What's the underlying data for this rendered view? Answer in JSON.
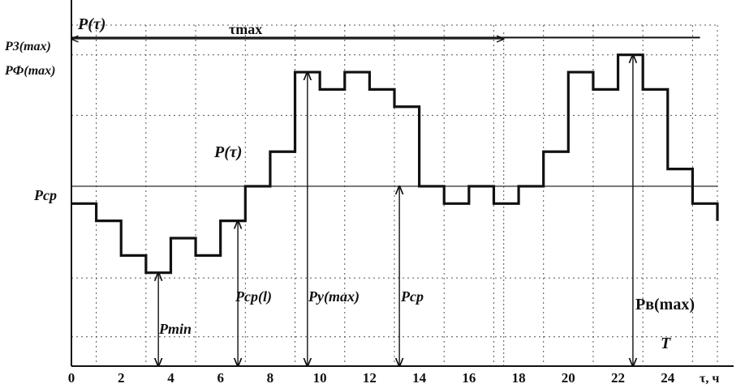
{
  "chart_data": {
    "type": "line",
    "x_axis": {
      "ticks": [
        "0",
        "2",
        "4",
        "6",
        "8",
        "10",
        "12",
        "14",
        "16",
        "18",
        "20",
        "22",
        "24"
      ],
      "label": "τ, ч",
      "range": [
        0,
        26
      ]
    },
    "y_axis": {
      "range": [
        0,
        10
      ]
    },
    "grid": "dotted",
    "series": [
      {
        "name": "P(τ)",
        "step": true,
        "x": [
          0,
          1,
          2,
          3,
          4,
          5,
          6,
          7,
          8,
          9,
          10,
          11,
          12,
          13,
          14,
          15,
          16,
          17,
          18,
          19,
          20,
          21,
          22,
          23,
          24,
          25,
          26
        ],
        "y": [
          4.7,
          4.2,
          3.2,
          2.7,
          3.7,
          3.2,
          4.2,
          5.2,
          6.2,
          8.5,
          8.0,
          8.5,
          8.0,
          7.5,
          5.2,
          4.7,
          5.2,
          4.7,
          5.2,
          6.2,
          8.5,
          8.0,
          9.0,
          8.0,
          5.7,
          4.7,
          4.2
        ]
      }
    ],
    "reference_lines": [
      {
        "name": "P_cp",
        "y": 5.2
      },
      {
        "name": "P_3(max)",
        "y": 9.5
      }
    ],
    "annotations": {
      "tau_max": {
        "label": "τmax",
        "x_start": 0,
        "x_end": 17.4
      },
      "p_tau_top": {
        "label": "P(τ)"
      },
      "p_tau_curve": {
        "label": "P(τ)"
      },
      "arrows": [
        {
          "label": "Pmin",
          "x": 3.5,
          "y_top": 2.7
        },
        {
          "label": "Pcp(l)",
          "x": 6.7,
          "y_top": 4.2
        },
        {
          "label": "Pу(max)",
          "x": 9.5,
          "y_top": 8.5
        },
        {
          "label": "Pcp",
          "x": 13.2,
          "y_top": 5.2
        },
        {
          "label": "Pв(max)",
          "x": 22.6,
          "y_top": 9.0
        }
      ],
      "period_label": "T",
      "y_labels": {
        "p3max": "P3(max)",
        "pfmax": "PФ(max)",
        "pcp": "Pcp"
      }
    }
  }
}
